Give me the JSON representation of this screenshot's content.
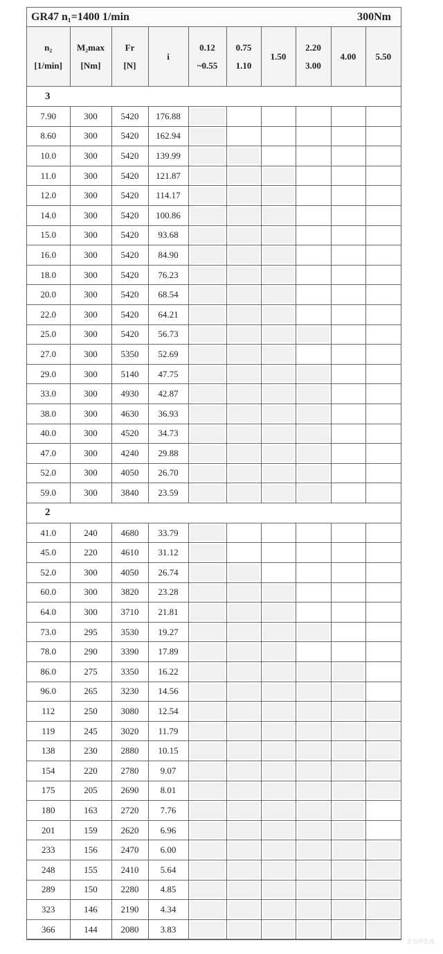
{
  "title": {
    "left": "GR47 n₁=1400 1/min",
    "right": "300Nm"
  },
  "headers": [
    {
      "l1": "n₂",
      "l2": "[1/min]"
    },
    {
      "l1": "M₂max",
      "l2": "[Nm]"
    },
    {
      "l1": "Fr",
      "l2": "[N]"
    },
    {
      "l1": "i",
      "l2": ""
    },
    {
      "l1": "0.12",
      "l2": "~0.55"
    },
    {
      "l1": "0.75",
      "l2": "1.10"
    },
    {
      "l1": "1.50",
      "l2": ""
    },
    {
      "l1": "2.20",
      "l2": "3.00"
    },
    {
      "l1": "4.00",
      "l2": ""
    },
    {
      "l1": "5.50",
      "l2": ""
    }
  ],
  "shade_color": "#f0f0f0",
  "groups": [
    {
      "label": "3",
      "rows": [
        {
          "n2": "7.90",
          "m": "300",
          "fr": "5420",
          "i": "176.88",
          "shaded_power_columns": 1
        },
        {
          "n2": "8.60",
          "m": "300",
          "fr": "5420",
          "i": "162.94",
          "shaded_power_columns": 1
        },
        {
          "n2": "10.0",
          "m": "300",
          "fr": "5420",
          "i": "139.99",
          "shaded_power_columns": 2
        },
        {
          "n2": "11.0",
          "m": "300",
          "fr": "5420",
          "i": "121.87",
          "shaded_power_columns": 3
        },
        {
          "n2": "12.0",
          "m": "300",
          "fr": "5420",
          "i": "114.17",
          "shaded_power_columns": 3
        },
        {
          "n2": "14.0",
          "m": "300",
          "fr": "5420",
          "i": "100.86",
          "shaded_power_columns": 3
        },
        {
          "n2": "15.0",
          "m": "300",
          "fr": "5420",
          "i": "93.68",
          "shaded_power_columns": 3
        },
        {
          "n2": "16.0",
          "m": "300",
          "fr": "5420",
          "i": "84.90",
          "shaded_power_columns": 3
        },
        {
          "n2": "18.0",
          "m": "300",
          "fr": "5420",
          "i": "76.23",
          "shaded_power_columns": 3
        },
        {
          "n2": "20.0",
          "m": "300",
          "fr": "5420",
          "i": "68.54",
          "shaded_power_columns": 3
        },
        {
          "n2": "22.0",
          "m": "300",
          "fr": "5420",
          "i": "64.21",
          "shaded_power_columns": 3
        },
        {
          "n2": "25.0",
          "m": "300",
          "fr": "5420",
          "i": "56.73",
          "shaded_power_columns": 4
        },
        {
          "n2": "27.0",
          "m": "300",
          "fr": "5350",
          "i": "52.69",
          "shaded_power_columns": 3
        },
        {
          "n2": "29.0",
          "m": "300",
          "fr": "5140",
          "i": "47.75",
          "shaded_power_columns": 4
        },
        {
          "n2": "33.0",
          "m": "300",
          "fr": "4930",
          "i": "42.87",
          "shaded_power_columns": 4
        },
        {
          "n2": "38.0",
          "m": "300",
          "fr": "4630",
          "i": "36.93",
          "shaded_power_columns": 4
        },
        {
          "n2": "40.0",
          "m": "300",
          "fr": "4520",
          "i": "34.73",
          "shaded_power_columns": 4
        },
        {
          "n2": "47.0",
          "m": "300",
          "fr": "4240",
          "i": "29.88",
          "shaded_power_columns": 4
        },
        {
          "n2": "52.0",
          "m": "300",
          "fr": "4050",
          "i": "26.70",
          "shaded_power_columns": 4
        },
        {
          "n2": "59.0",
          "m": "300",
          "fr": "3840",
          "i": "23.59",
          "shaded_power_columns": 4
        }
      ]
    },
    {
      "label": "2",
      "rows": [
        {
          "n2": "41.0",
          "m": "240",
          "fr": "4680",
          "i": "33.79",
          "shaded_power_columns": 1
        },
        {
          "n2": "45.0",
          "m": "220",
          "fr": "4610",
          "i": "31.12",
          "shaded_power_columns": 1
        },
        {
          "n2": "52.0",
          "m": "300",
          "fr": "4050",
          "i": "26.74",
          "shaded_power_columns": 2
        },
        {
          "n2": "60.0",
          "m": "300",
          "fr": "3820",
          "i": "23.28",
          "shaded_power_columns": 3
        },
        {
          "n2": "64.0",
          "m": "300",
          "fr": "3710",
          "i": "21.81",
          "shaded_power_columns": 3
        },
        {
          "n2": "73.0",
          "m": "295",
          "fr": "3530",
          "i": "19.27",
          "shaded_power_columns": 4
        },
        {
          "n2": "78.0",
          "m": "290",
          "fr": "3390",
          "i": "17.89",
          "shaded_power_columns": 3
        },
        {
          "n2": "86.0",
          "m": "275",
          "fr": "3350",
          "i": "16.22",
          "shaded_power_columns": 5
        },
        {
          "n2": "96.0",
          "m": "265",
          "fr": "3230",
          "i": "14.56",
          "shaded_power_columns": 5
        },
        {
          "n2": "112",
          "m": "250",
          "fr": "3080",
          "i": "12.54",
          "shaded_power_columns": 6
        },
        {
          "n2": "119",
          "m": "245",
          "fr": "3020",
          "i": "11.79",
          "shaded_power_columns": 6
        },
        {
          "n2": "138",
          "m": "230",
          "fr": "2880",
          "i": "10.15",
          "shaded_power_columns": 6
        },
        {
          "n2": "154",
          "m": "220",
          "fr": "2780",
          "i": "9.07",
          "shaded_power_columns": 6
        },
        {
          "n2": "175",
          "m": "205",
          "fr": "2690",
          "i": "8.01",
          "shaded_power_columns": 6
        },
        {
          "n2": "180",
          "m": "163",
          "fr": "2720",
          "i": "7.76",
          "shaded_power_columns": 5
        },
        {
          "n2": "201",
          "m": "159",
          "fr": "2620",
          "i": "6.96",
          "shaded_power_columns": 5
        },
        {
          "n2": "233",
          "m": "156",
          "fr": "2470",
          "i": "6.00",
          "shaded_power_columns": 6
        },
        {
          "n2": "248",
          "m": "155",
          "fr": "2410",
          "i": "5.64",
          "shaded_power_columns": 6
        },
        {
          "n2": "289",
          "m": "150",
          "fr": "2280",
          "i": "4.85",
          "shaded_power_columns": 6
        },
        {
          "n2": "323",
          "m": "146",
          "fr": "2190",
          "i": "4.34",
          "shaded_power_columns": 6
        },
        {
          "n2": "366",
          "m": "144",
          "fr": "2080",
          "i": "3.83",
          "shaded_power_columns": 6
        }
      ]
    }
  ],
  "watermark": "豆包AI生成"
}
